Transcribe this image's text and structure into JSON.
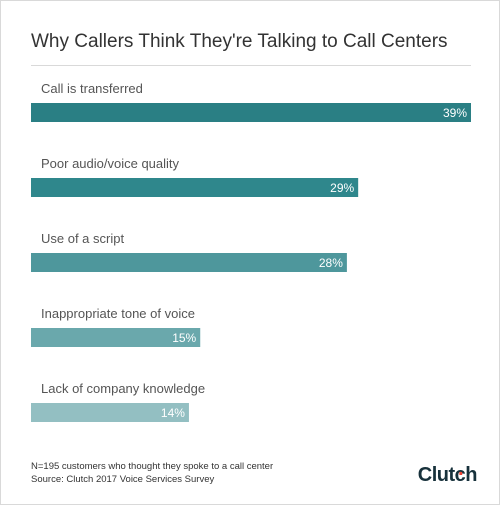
{
  "chart_data": {
    "type": "bar",
    "orientation": "horizontal",
    "title": "Why Callers Think They're Talking to Call Centers",
    "categories": [
      "Call is transferred",
      "Poor audio/voice quality",
      "Use of a script",
      "Inappropriate tone of voice",
      "Lack of company knowledge"
    ],
    "values": [
      39,
      29,
      28,
      15,
      14
    ],
    "value_labels": [
      "39%",
      "29%",
      "28%",
      "15%",
      "14%"
    ],
    "bar_colors": [
      "#2a7f84",
      "#2f878c",
      "#4e979c",
      "#6aa8ac",
      "#93bfc2"
    ],
    "xlim": [
      0,
      39
    ],
    "grid": false,
    "legend": "none"
  },
  "footnote": {
    "line1": "N=195 customers who thought they spoke to a call center",
    "line2": "Source: Clutch 2017 Voice Services Survey"
  },
  "logo": {
    "text_main": "Clutch",
    "dot_color": "#ef4335"
  }
}
